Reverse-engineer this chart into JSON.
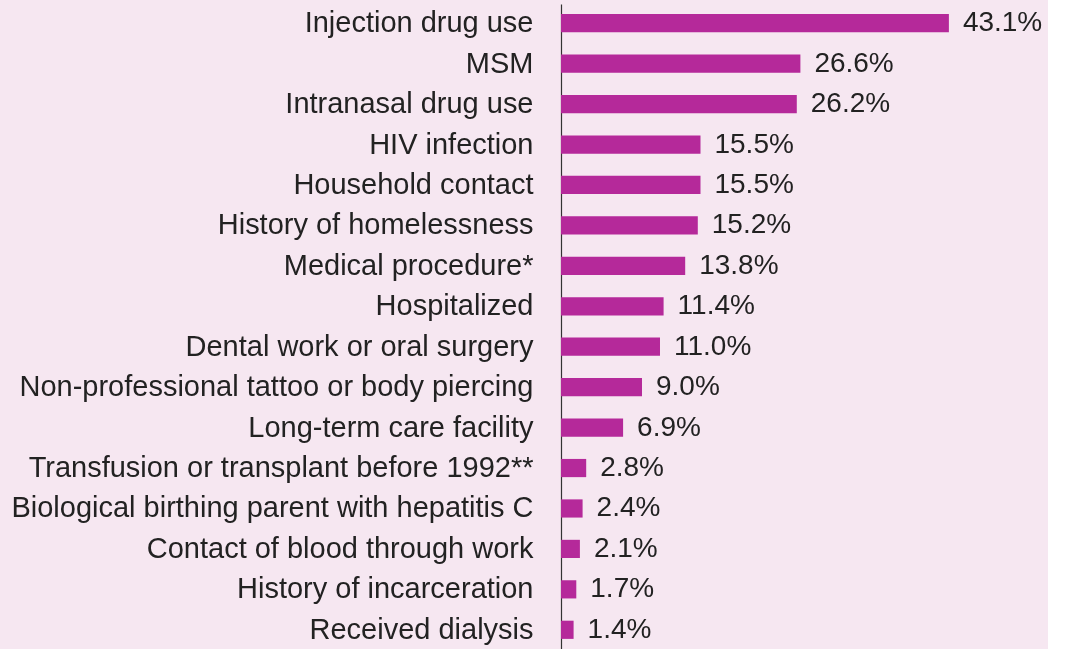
{
  "chart_data": {
    "type": "bar",
    "orientation": "horizontal",
    "categories": [
      "Injection drug use",
      "MSM",
      "Intranasal drug use",
      "HIV infection",
      "Household contact",
      "History of homelessness",
      "Medical procedure*",
      "Hospitalized",
      "Dental work or oral surgery",
      "Non-professional tattoo or body piercing",
      "Long-term care facility",
      "Transfusion or transplant before 1992**",
      "Biological birthing parent with hepatitis C",
      "Contact of blood through work",
      "History of incarceration",
      "Received dialysis"
    ],
    "values": [
      43.1,
      26.6,
      26.2,
      15.5,
      15.5,
      15.2,
      13.8,
      11.4,
      11.0,
      9.0,
      6.9,
      2.8,
      2.4,
      2.1,
      1.7,
      1.4
    ],
    "value_labels": [
      "43.1%",
      "26.6%",
      "26.2%",
      "15.5%",
      "15.5%",
      "15.2%",
      "13.8%",
      "11.4%",
      "11.0%",
      "9.0%",
      "6.9%",
      "2.8%",
      "2.4%",
      "2.1%",
      "1.7%",
      "1.4%"
    ],
    "color": "#b5299a",
    "tick_labels": "y"
  }
}
